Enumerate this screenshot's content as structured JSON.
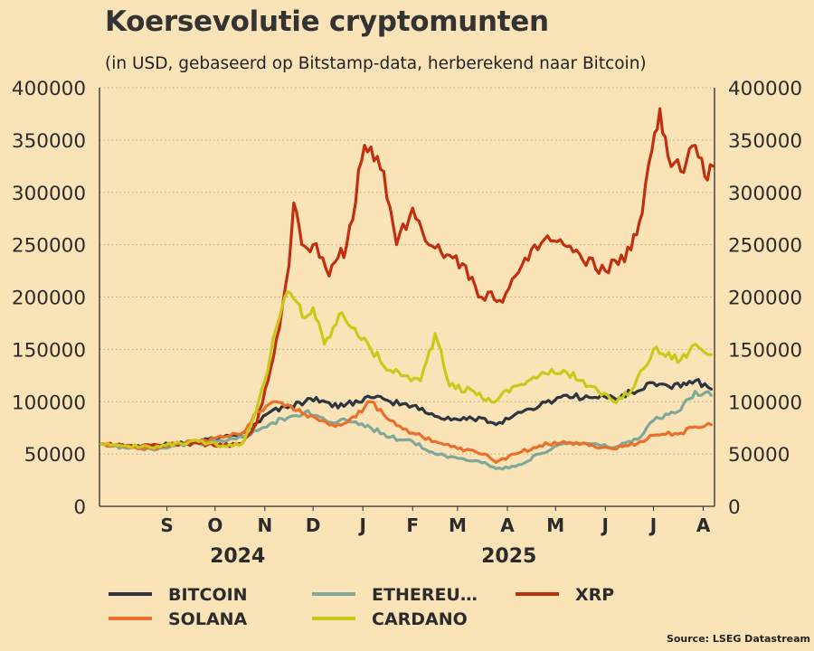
{
  "source": "Source: LSEG Datastream",
  "chart_data": {
    "type": "line",
    "title": "Koersevolutie cryptomunten",
    "subtitle": "(in USD, gebaseerd op Bitstamp-data, herberekend naar Bitcoin)",
    "ylim": [
      0,
      400000
    ],
    "yticks": [
      0,
      50000,
      100000,
      150000,
      200000,
      250000,
      300000,
      350000,
      400000
    ],
    "ytick_labels": [
      "0",
      "50000",
      "100000",
      "150000",
      "200000",
      "250000",
      "300000",
      "350000",
      "400000"
    ],
    "y_axes": [
      "left",
      "right"
    ],
    "grid": "horizontal, dotted",
    "x_domain": [
      "2024-08-04",
      "2025-08-22"
    ],
    "x_ticks": [
      {
        "label": "S",
        "date": "2024-09-15"
      },
      {
        "label": "O",
        "date": "2024-10-15"
      },
      {
        "label": "N",
        "date": "2024-11-15"
      },
      {
        "label": "D",
        "date": "2024-12-15"
      },
      {
        "label": "J",
        "date": "2025-01-15"
      },
      {
        "label": "F",
        "date": "2025-02-15"
      },
      {
        "label": "M",
        "date": "2025-03-15"
      },
      {
        "label": "A",
        "date": "2025-04-15"
      },
      {
        "label": "M",
        "date": "2025-05-15"
      },
      {
        "label": "J",
        "date": "2025-06-15"
      },
      {
        "label": "J",
        "date": "2025-07-15"
      },
      {
        "label": "A",
        "date": "2025-08-15"
      }
    ],
    "x_year_labels": [
      {
        "label": "2024",
        "date": "2024-10-29"
      },
      {
        "label": "2025",
        "date": "2025-04-16"
      }
    ],
    "legend_position": "bottom",
    "series": [
      {
        "name": "BITCOIN",
        "color": "#2e3440",
        "data": [
          [
            "2024-08-05",
            60000
          ],
          [
            "2024-08-20",
            58000
          ],
          [
            "2024-09-05",
            57000
          ],
          [
            "2024-09-20",
            60000
          ],
          [
            "2024-10-05",
            62000
          ],
          [
            "2024-10-20",
            66000
          ],
          [
            "2024-11-01",
            70000
          ],
          [
            "2024-11-10",
            80000
          ],
          [
            "2024-11-20",
            92000
          ],
          [
            "2024-12-01",
            96000
          ],
          [
            "2024-12-10",
            100000
          ],
          [
            "2024-12-17",
            104000
          ],
          [
            "2024-12-27",
            95000
          ],
          [
            "2025-01-05",
            98000
          ],
          [
            "2025-01-20",
            104000
          ],
          [
            "2025-02-01",
            100000
          ],
          [
            "2025-02-15",
            96000
          ],
          [
            "2025-03-01",
            86000
          ],
          [
            "2025-03-15",
            83000
          ],
          [
            "2025-04-01",
            84000
          ],
          [
            "2025-04-08",
            78000
          ],
          [
            "2025-04-20",
            88000
          ],
          [
            "2025-05-05",
            96000
          ],
          [
            "2025-05-20",
            106000
          ],
          [
            "2025-06-05",
            104000
          ],
          [
            "2025-06-20",
            104000
          ],
          [
            "2025-07-05",
            110000
          ],
          [
            "2025-07-15",
            118000
          ],
          [
            "2025-08-01",
            114000
          ],
          [
            "2025-08-10",
            120000
          ],
          [
            "2025-08-20",
            112000
          ]
        ]
      },
      {
        "name": "ETHEREU…",
        "color": "#7fa89a",
        "data": [
          [
            "2024-08-05",
            60000
          ],
          [
            "2024-08-20",
            56000
          ],
          [
            "2024-09-05",
            55000
          ],
          [
            "2024-09-20",
            58000
          ],
          [
            "2024-10-05",
            60000
          ],
          [
            "2024-10-20",
            62000
          ],
          [
            "2024-11-01",
            66000
          ],
          [
            "2024-11-10",
            72000
          ],
          [
            "2024-11-20",
            80000
          ],
          [
            "2024-12-01",
            86000
          ],
          [
            "2024-12-10",
            90000
          ],
          [
            "2024-12-17",
            87000
          ],
          [
            "2024-12-27",
            80000
          ],
          [
            "2025-01-05",
            82000
          ],
          [
            "2025-01-20",
            75000
          ],
          [
            "2025-02-01",
            66000
          ],
          [
            "2025-02-15",
            62000
          ],
          [
            "2025-03-01",
            50000
          ],
          [
            "2025-03-15",
            46000
          ],
          [
            "2025-04-01",
            42000
          ],
          [
            "2025-04-08",
            36000
          ],
          [
            "2025-04-20",
            38000
          ],
          [
            "2025-05-05",
            50000
          ],
          [
            "2025-05-20",
            60000
          ],
          [
            "2025-06-05",
            60000
          ],
          [
            "2025-06-20",
            56000
          ],
          [
            "2025-07-05",
            64000
          ],
          [
            "2025-07-15",
            82000
          ],
          [
            "2025-08-01",
            92000
          ],
          [
            "2025-08-10",
            110000
          ],
          [
            "2025-08-20",
            106000
          ]
        ]
      },
      {
        "name": "XRP",
        "color": "#c0300f",
        "data": [
          [
            "2024-08-05",
            60000
          ],
          [
            "2024-08-20",
            58000
          ],
          [
            "2024-09-05",
            58000
          ],
          [
            "2024-09-20",
            60000
          ],
          [
            "2024-10-05",
            60000
          ],
          [
            "2024-10-20",
            58000
          ],
          [
            "2024-11-01",
            60000
          ],
          [
            "2024-11-10",
            80000
          ],
          [
            "2024-11-17",
            120000
          ],
          [
            "2024-11-24",
            170000
          ],
          [
            "2024-11-30",
            230000
          ],
          [
            "2024-12-03",
            290000
          ],
          [
            "2024-12-08",
            250000
          ],
          [
            "2024-12-15",
            250000
          ],
          [
            "2024-12-25",
            220000
          ],
          [
            "2025-01-05",
            250000
          ],
          [
            "2025-01-16",
            345000
          ],
          [
            "2025-01-22",
            330000
          ],
          [
            "2025-01-28",
            320000
          ],
          [
            "2025-02-05",
            250000
          ],
          [
            "2025-02-15",
            285000
          ],
          [
            "2025-02-25",
            250000
          ],
          [
            "2025-03-03",
            250000
          ],
          [
            "2025-03-10",
            240000
          ],
          [
            "2025-03-20",
            230000
          ],
          [
            "2025-03-28",
            200000
          ],
          [
            "2025-04-05",
            205000
          ],
          [
            "2025-04-12",
            195000
          ],
          [
            "2025-04-20",
            220000
          ],
          [
            "2025-04-28",
            235000
          ],
          [
            "2025-05-08",
            255000
          ],
          [
            "2025-05-20",
            250000
          ],
          [
            "2025-06-01",
            235000
          ],
          [
            "2025-06-15",
            225000
          ],
          [
            "2025-07-01",
            245000
          ],
          [
            "2025-07-08",
            280000
          ],
          [
            "2025-07-14",
            340000
          ],
          [
            "2025-07-19",
            380000
          ],
          [
            "2025-07-24",
            335000
          ],
          [
            "2025-08-01",
            320000
          ],
          [
            "2025-08-10",
            345000
          ],
          [
            "2025-08-16",
            315000
          ],
          [
            "2025-08-21",
            325000
          ]
        ]
      },
      {
        "name": "SOLANA",
        "color": "#e8702a",
        "data": [
          [
            "2024-08-05",
            60000
          ],
          [
            "2024-08-20",
            57000
          ],
          [
            "2024-09-05",
            55000
          ],
          [
            "2024-09-20",
            60000
          ],
          [
            "2024-10-05",
            62000
          ],
          [
            "2024-10-20",
            66000
          ],
          [
            "2024-11-01",
            70000
          ],
          [
            "2024-11-10",
            90000
          ],
          [
            "2024-11-20",
            100000
          ],
          [
            "2024-12-01",
            96000
          ],
          [
            "2024-12-10",
            88000
          ],
          [
            "2024-12-17",
            84000
          ],
          [
            "2024-12-27",
            78000
          ],
          [
            "2025-01-05",
            80000
          ],
          [
            "2025-01-20",
            100000
          ],
          [
            "2025-02-01",
            82000
          ],
          [
            "2025-02-15",
            70000
          ],
          [
            "2025-03-01",
            62000
          ],
          [
            "2025-03-15",
            55000
          ],
          [
            "2025-04-01",
            50000
          ],
          [
            "2025-04-08",
            42000
          ],
          [
            "2025-04-20",
            50000
          ],
          [
            "2025-05-05",
            58000
          ],
          [
            "2025-05-20",
            62000
          ],
          [
            "2025-06-05",
            58000
          ],
          [
            "2025-06-20",
            55000
          ],
          [
            "2025-07-05",
            60000
          ],
          [
            "2025-07-15",
            68000
          ],
          [
            "2025-08-01",
            70000
          ],
          [
            "2025-08-10",
            76000
          ],
          [
            "2025-08-20",
            78000
          ]
        ]
      },
      {
        "name": "CARDANO",
        "color": "#c9c91a",
        "data": [
          [
            "2024-08-05",
            60000
          ],
          [
            "2024-08-20",
            58000
          ],
          [
            "2024-09-05",
            56000
          ],
          [
            "2024-09-20",
            60000
          ],
          [
            "2024-10-05",
            62000
          ],
          [
            "2024-10-20",
            58000
          ],
          [
            "2024-11-01",
            60000
          ],
          [
            "2024-11-08",
            85000
          ],
          [
            "2024-11-15",
            120000
          ],
          [
            "2024-11-22",
            170000
          ],
          [
            "2024-11-29",
            205000
          ],
          [
            "2024-12-05",
            195000
          ],
          [
            "2024-12-10",
            180000
          ],
          [
            "2024-12-15",
            190000
          ],
          [
            "2024-12-22",
            155000
          ],
          [
            "2025-01-02",
            185000
          ],
          [
            "2025-01-10",
            170000
          ],
          [
            "2025-01-20",
            150000
          ],
          [
            "2025-02-01",
            130000
          ],
          [
            "2025-02-10",
            125000
          ],
          [
            "2025-02-20",
            120000
          ],
          [
            "2025-03-01",
            165000
          ],
          [
            "2025-03-10",
            115000
          ],
          [
            "2025-03-25",
            110000
          ],
          [
            "2025-04-05",
            100000
          ],
          [
            "2025-04-20",
            115000
          ],
          [
            "2025-05-05",
            125000
          ],
          [
            "2025-05-20",
            130000
          ],
          [
            "2025-06-05",
            115000
          ],
          [
            "2025-06-20",
            100000
          ],
          [
            "2025-07-01",
            110000
          ],
          [
            "2025-07-15",
            150000
          ],
          [
            "2025-08-01",
            140000
          ],
          [
            "2025-08-10",
            155000
          ],
          [
            "2025-08-20",
            145000
          ]
        ]
      }
    ]
  }
}
